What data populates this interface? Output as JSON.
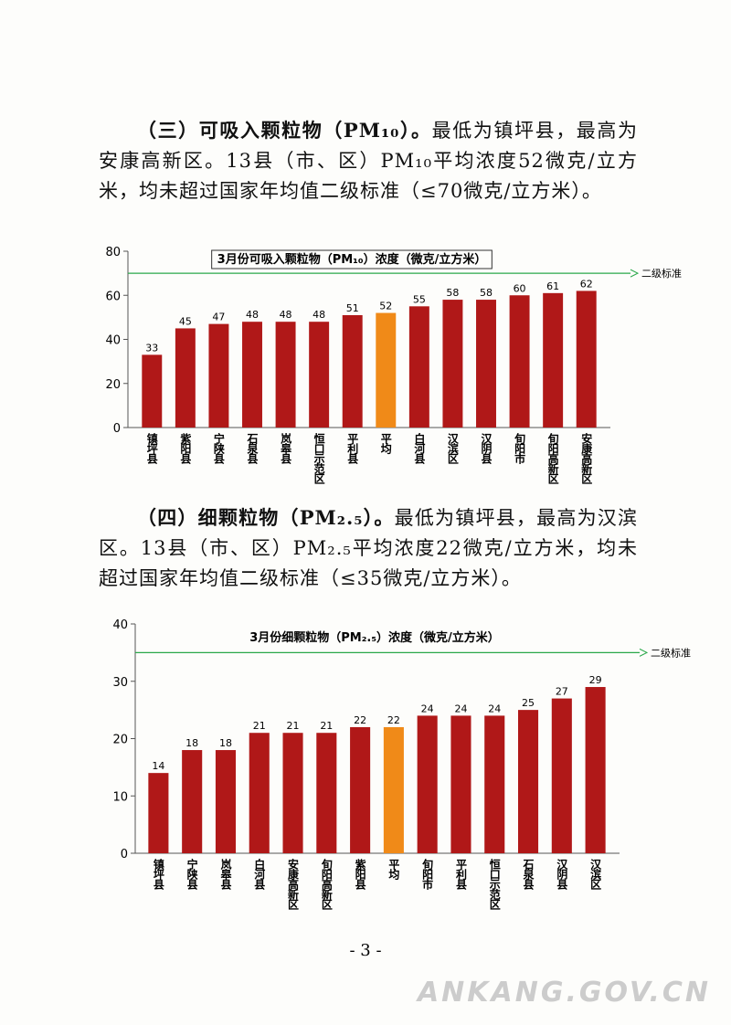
{
  "sections": [
    {
      "heading": "（三）可吸入颗粒物（PM₁₀）。",
      "text": "最低为镇坪县，最高为安康高新区。13县（市、区）PM₁₀平均浓度52微克/立方米，均未超过国家年均值二级标准（≤70微克/立方米）。"
    },
    {
      "heading": "（四）细颗粒物（PM₂.₅）。",
      "text": "最低为镇坪县，最高为汉滨区。13县（市、区）PM₂.₅平均浓度22微克/立方米，均未超过国家年均值二级标准（≤35微克/立方米）。"
    }
  ],
  "chart_data": [
    {
      "type": "bar",
      "title": "3月份可吸入颗粒物（PM₁₀）浓度（微克/立方米）",
      "categories": [
        "镇坪县",
        "紫阳县",
        "宁陕县",
        "石泉县",
        "岚皋县",
        "恒口示范区",
        "平利县",
        "平均",
        "白河县",
        "汉滨区",
        "汉阴县",
        "旬阳市",
        "旬阳高新区",
        "安康高新区"
      ],
      "values": [
        33,
        45,
        47,
        48,
        48,
        48,
        51,
        52,
        55,
        58,
        58,
        60,
        61,
        62
      ],
      "colors": [
        "#b01818",
        "#b01818",
        "#b01818",
        "#b01818",
        "#b01818",
        "#b01818",
        "#b01818",
        "#f08a18",
        "#b01818",
        "#b01818",
        "#b01818",
        "#b01818",
        "#b01818",
        "#b01818"
      ],
      "ylim": [
        0,
        80
      ],
      "yticks": [
        0,
        20,
        40,
        60,
        80
      ],
      "reference": {
        "value": 70,
        "label": "二级标准",
        "color": "#2aa84a"
      }
    },
    {
      "type": "bar",
      "title": "3月份细颗粒物（PM₂.₅）浓度（微克/立方米）",
      "categories": [
        "镇坪县",
        "宁陕县",
        "岚皋县",
        "白河县",
        "安康高新区",
        "旬阳高新区",
        "紫阳县",
        "平均",
        "旬阳市",
        "平利县",
        "恒口示范区",
        "石泉县",
        "汉阴县",
        "汉滨区"
      ],
      "values": [
        14,
        18,
        18,
        21,
        21,
        21,
        22,
        22,
        24,
        24,
        24,
        25,
        27,
        29
      ],
      "colors": [
        "#b01818",
        "#b01818",
        "#b01818",
        "#b01818",
        "#b01818",
        "#b01818",
        "#b01818",
        "#f08a18",
        "#b01818",
        "#b01818",
        "#b01818",
        "#b01818",
        "#b01818",
        "#b01818"
      ],
      "ylim": [
        0,
        40
      ],
      "yticks": [
        0,
        10,
        20,
        30,
        40
      ],
      "reference": {
        "value": 35,
        "label": "二级标准",
        "color": "#2aa84a"
      }
    }
  ],
  "page_number": "- 3 -",
  "watermark": "ANKANG.GOV.CN"
}
